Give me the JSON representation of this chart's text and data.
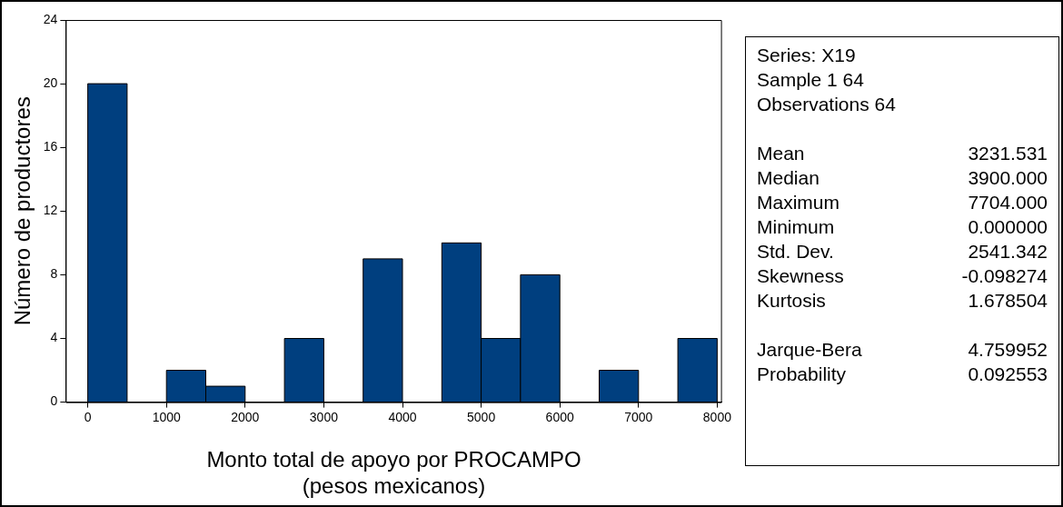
{
  "chart_data": {
    "type": "histogram",
    "xlabel": "Monto total de apoyo por PROCAMPO\n(pesos mexicanos)",
    "ylabel": "Número de productores",
    "bins": [
      0,
      500,
      1000,
      1500,
      2000,
      2500,
      3000,
      3500,
      4000,
      4500,
      5000,
      5500,
      6000,
      6500,
      7000,
      7500,
      8000
    ],
    "values": [
      20,
      0,
      2,
      1,
      0,
      4,
      0,
      9,
      0,
      10,
      4,
      8,
      0,
      2,
      0,
      4
    ],
    "color": "#003f7f",
    "xlim": [
      -280,
      8060
    ],
    "xticks": [
      0,
      1000,
      2000,
      3000,
      4000,
      5000,
      6000,
      7000,
      8000
    ],
    "ylim": [
      0,
      24
    ],
    "yticks": [
      0,
      4,
      8,
      12,
      16,
      20,
      24
    ],
    "grid": false,
    "legend": false,
    "annotations": [
      "Series: X19",
      "Sample 1 64",
      "Observations 64",
      "Mean\t3231.531",
      "Median\t3900.000",
      "Maximum\t7704.000",
      "Minimum\t0.000000",
      "Std. Dev.\t2541.342",
      "Skewness\t-0.098274",
      "Kurtosis\t1.678504",
      "Jarque-Bera\t4.759952",
      "Probability\t0.092553"
    ]
  }
}
